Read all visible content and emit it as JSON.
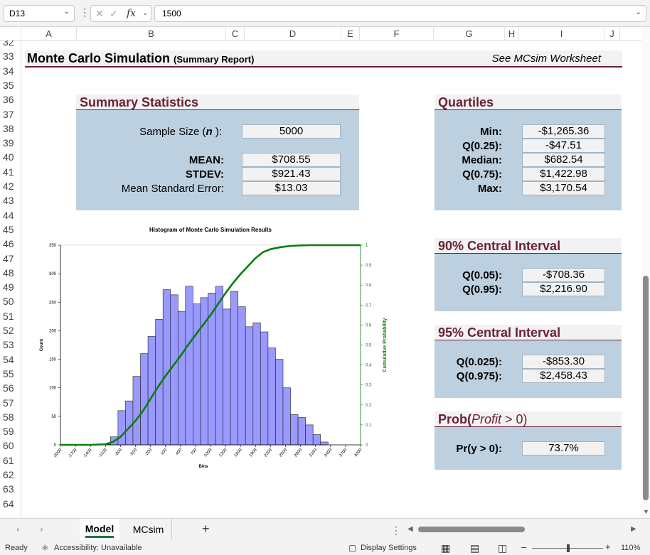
{
  "formula_bar": {
    "name_box": "D13",
    "value": "1500",
    "fx": "fx"
  },
  "columns": [
    "A",
    "B",
    "C",
    "D",
    "E",
    "F",
    "G",
    "H",
    "I",
    "J"
  ],
  "rows": [
    "32",
    "33",
    "34",
    "35",
    "36",
    "37",
    "38",
    "39",
    "40",
    "41",
    "42",
    "43",
    "44",
    "45",
    "46",
    "47",
    "48",
    "49",
    "50",
    "51",
    "52",
    "53",
    "54",
    "55",
    "56",
    "57",
    "58",
    "59",
    "60",
    "61",
    "62",
    "63",
    "64"
  ],
  "report": {
    "title": "Monte Carlo Simulation",
    "subtitle": "(Summary Report)",
    "see": "See MCsim Worksheet"
  },
  "summary": {
    "heading": "Summary Statistics",
    "sample_label_pre": "Sample Size (",
    "sample_label_n": "n",
    "sample_label_post": "):",
    "sample": "5000",
    "mean_label": "MEAN:",
    "mean": "$708.55",
    "stdev_label": "STDEV:",
    "stdev": "$921.43",
    "mse_label": "Mean Standard Error:",
    "mse": "$13.03"
  },
  "quartiles": {
    "heading": "Quartiles",
    "min_label": "Min:",
    "min": "-$1,265.36",
    "q25_label": "Q(0.25):",
    "q25": "-$47.51",
    "median_label": "Median:",
    "median": "$682.54",
    "q75_label": "Q(0.75):",
    "q75": "$1,422.98",
    "max_label": "Max:",
    "max": "$3,170.54"
  },
  "ci90": {
    "heading": "90% Central Interval",
    "lo_label": "Q(0.05):",
    "lo": "-$708.36",
    "hi_label": "Q(0.95):",
    "hi": "$2,216.90"
  },
  "ci95": {
    "heading": "95% Central Interval",
    "lo_label": "Q(0.025):",
    "lo": "-$853.30",
    "hi_label": "Q(0.975):",
    "hi": "$2,458.43"
  },
  "prob": {
    "heading_pre": "Prob(",
    "heading_var": "Profit",
    "heading_post": " > 0)",
    "label": "Pr(y > 0):",
    "value": "73.7%"
  },
  "chart_data": {
    "type": "bar",
    "title": "Histogram of Monte Carlo Simulation Results",
    "xlabel": "Bins",
    "ylabel": "Count",
    "y2label": "Cumulative Probability",
    "ylim": [
      0,
      350
    ],
    "y2lim": [
      0,
      1
    ],
    "yticks": [
      "0",
      "50",
      "100",
      "150",
      "200",
      "250",
      "300",
      "350"
    ],
    "y2ticks": [
      "0",
      "0.1",
      "0.2",
      "0.3",
      "0.4",
      "0.5",
      "0.6",
      "0.7",
      "0.8",
      "0.9",
      "1"
    ],
    "xticks": [
      "-2000",
      "-1700",
      "-1400",
      "-1100",
      "-800",
      "-500",
      "-200",
      "100",
      "400",
      "700",
      "1000",
      "1300",
      "1600",
      "1900",
      "2200",
      "2500",
      "2800",
      "3100",
      "3400",
      "3700",
      "4000"
    ],
    "bin_width": 150,
    "bins": [
      -1300,
      -1150,
      -1000,
      -850,
      -700,
      -550,
      -400,
      -250,
      -100,
      50,
      200,
      350,
      500,
      650,
      800,
      950,
      1100,
      1250,
      1400,
      1550,
      1700,
      1850,
      2000,
      2150,
      2300,
      2450,
      2600,
      2750,
      2900,
      3050,
      3200
    ],
    "counts": [
      0,
      1,
      14,
      60,
      77,
      120,
      160,
      190,
      220,
      272,
      263,
      234,
      278,
      247,
      258,
      266,
      278,
      238,
      269,
      242,
      207,
      214,
      198,
      170,
      150,
      100,
      53,
      48,
      35,
      18,
      5
    ],
    "cum_x": [
      -2000,
      -1400,
      -1100,
      -950,
      -800,
      -650,
      -500,
      -350,
      -200,
      -50,
      100,
      250,
      400,
      550,
      700,
      850,
      1000,
      1150,
      1300,
      1450,
      1600,
      1750,
      1900,
      2050,
      2200,
      2400,
      2600,
      2800,
      3000,
      3200,
      3500,
      4000
    ],
    "cum_y": [
      0,
      0,
      0.003,
      0.015,
      0.04,
      0.08,
      0.12,
      0.17,
      0.23,
      0.29,
      0.345,
      0.395,
      0.445,
      0.5,
      0.55,
      0.6,
      0.65,
      0.705,
      0.76,
      0.81,
      0.855,
      0.895,
      0.935,
      0.965,
      0.98,
      0.99,
      0.996,
      0.999,
      1,
      1,
      1,
      1
    ],
    "bar_color": "#9999ff",
    "line_color": "#0a7d0a"
  },
  "tabs": {
    "model": "Model",
    "mcsim": "MCsim",
    "add": "+"
  },
  "status": {
    "ready": "Ready",
    "accessibility": "Accessibility: Unavailable",
    "display": "Display Settings",
    "zoom": "110%"
  }
}
